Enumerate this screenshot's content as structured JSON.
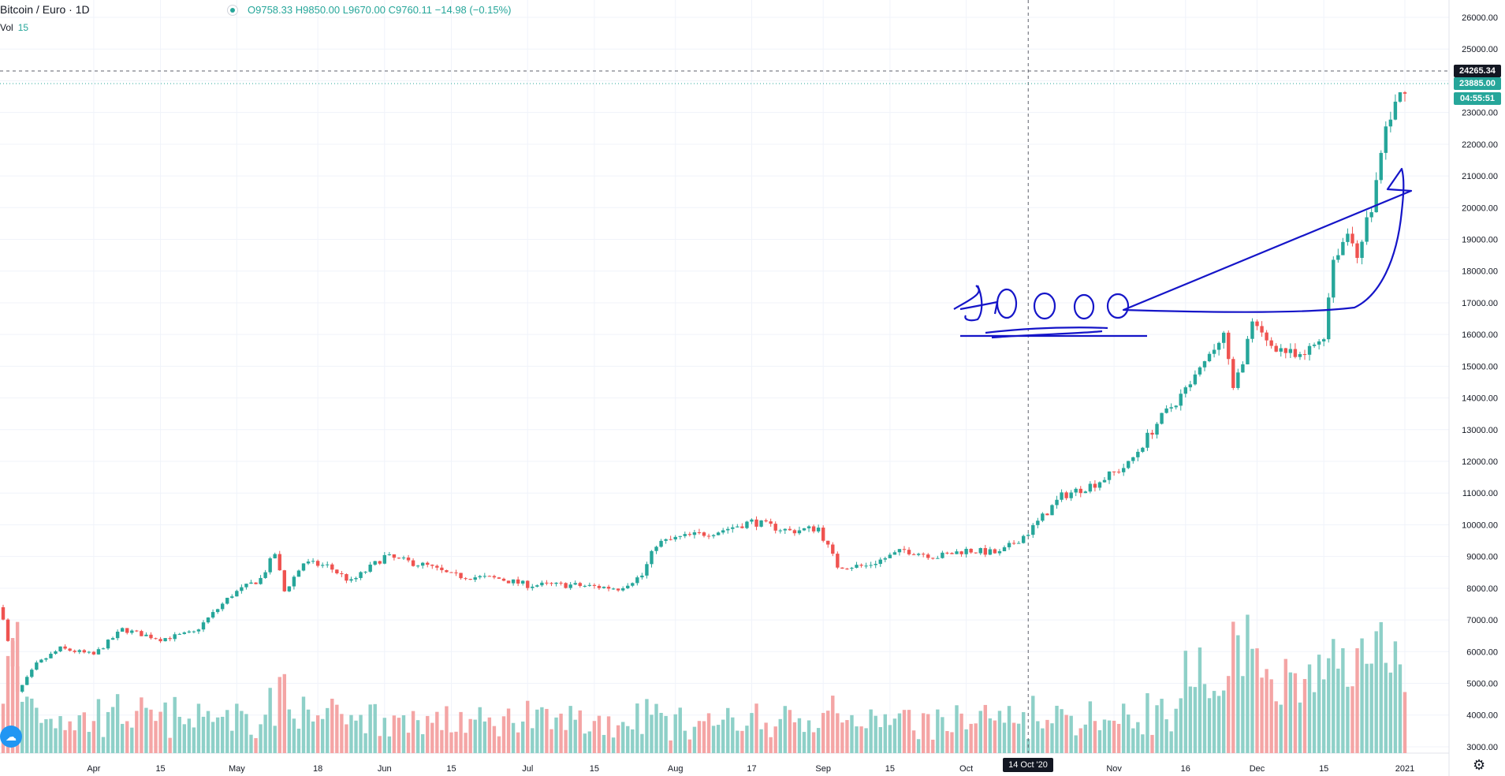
{
  "header": {
    "symbol": "Bitcoin / Euro · 1D",
    "open": "O9758.33",
    "high": "H9850.00",
    "low": "L9670.00",
    "close": "C9760.11",
    "change": "−14.98 (−0.15%)",
    "vol_label": "Vol",
    "vol_value": "15"
  },
  "crosshair": {
    "price_label": "24265.34",
    "date_label": "14 Oct '20"
  },
  "last_price": {
    "label": "23885.00",
    "countdown": "04:55:51"
  },
  "colors": {
    "up": "#26a69a",
    "down": "#ef5350",
    "vol_up": "#8ed0c8",
    "vol_down": "#f4a5a5",
    "annotation": "#1515c8"
  },
  "icons": {
    "logo": "tradingview-cloud-icon",
    "settings": "gear-icon"
  },
  "annotation_text": "16000",
  "chart_data": {
    "type": "candlestick",
    "title": "Bitcoin / Euro · 1D",
    "ylim": [
      2000,
      26500
    ],
    "grid": true,
    "y_ticks": [
      3000,
      4000,
      5000,
      6000,
      7000,
      8000,
      9000,
      10000,
      11000,
      12000,
      13000,
      14000,
      15000,
      16000,
      17000,
      18000,
      19000,
      20000,
      21000,
      22000,
      23000,
      24000,
      25000,
      26000
    ],
    "y_tick_labels": [
      "3000.00",
      "4000.00",
      "5000.00",
      "6000.00",
      "7000.00",
      "8000.00",
      "9000.00",
      "10000.00",
      "11000.00",
      "12000.00",
      "13000.00",
      "14000.00",
      "15000.00",
      "16000.00",
      "17000.00",
      "18000.00",
      "19000.00",
      "20000.00",
      "21000.00",
      "22000.00",
      "23000.00",
      "24000.00",
      "25000.00",
      "26000.00"
    ],
    "x_ticks": [
      {
        "label": "Apr",
        "date": "2020-04-01"
      },
      {
        "label": "15",
        "date": "2020-04-15"
      },
      {
        "label": "May",
        "date": "2020-05-01"
      },
      {
        "label": "18",
        "date": "2020-05-18"
      },
      {
        "label": "Jun",
        "date": "2020-06-01"
      },
      {
        "label": "15",
        "date": "2020-06-15"
      },
      {
        "label": "Jul",
        "date": "2020-07-01"
      },
      {
        "label": "15",
        "date": "2020-07-15"
      },
      {
        "label": "Aug",
        "date": "2020-08-01"
      },
      {
        "label": "17",
        "date": "2020-08-17"
      },
      {
        "label": "Sep",
        "date": "2020-09-01"
      },
      {
        "label": "15",
        "date": "2020-09-15"
      },
      {
        "label": "Oct",
        "date": "2020-10-01"
      },
      {
        "label": "Nov",
        "date": "2020-11-01"
      },
      {
        "label": "16",
        "date": "2020-11-16"
      },
      {
        "label": "Dec",
        "date": "2020-12-01"
      },
      {
        "label": "15",
        "date": "2020-12-15"
      },
      {
        "label": "2021",
        "date": "2021-01-01"
      }
    ],
    "x_range": [
      "2020-03-13",
      "2021-01-01"
    ],
    "close_anchors": [
      [
        "2020-03-13",
        7100
      ],
      [
        "2020-03-16",
        4700
      ],
      [
        "2020-03-20",
        5600
      ],
      [
        "2020-03-25",
        6100
      ],
      [
        "2020-04-01",
        5900
      ],
      [
        "2020-04-07",
        6700
      ],
      [
        "2020-04-15",
        6400
      ],
      [
        "2020-04-22",
        6600
      ],
      [
        "2020-04-30",
        7800
      ],
      [
        "2020-05-06",
        8300
      ],
      [
        "2020-05-09",
        9100
      ],
      [
        "2020-05-11",
        7900
      ],
      [
        "2020-05-15",
        8800
      ],
      [
        "2020-05-20",
        8700
      ],
      [
        "2020-05-25",
        8200
      ],
      [
        "2020-06-01",
        9000
      ],
      [
        "2020-06-10",
        8700
      ],
      [
        "2020-06-15",
        8400
      ],
      [
        "2020-06-25",
        8300
      ],
      [
        "2020-07-01",
        8100
      ],
      [
        "2020-07-10",
        8100
      ],
      [
        "2020-07-20",
        8000
      ],
      [
        "2020-07-25",
        8400
      ],
      [
        "2020-07-28",
        9400
      ],
      [
        "2020-08-02",
        9600
      ],
      [
        "2020-08-10",
        9800
      ],
      [
        "2020-08-17",
        10100
      ],
      [
        "2020-08-25",
        9800
      ],
      [
        "2020-08-31",
        9900
      ],
      [
        "2020-09-04",
        8700
      ],
      [
        "2020-09-10",
        8700
      ],
      [
        "2020-09-18",
        9200
      ],
      [
        "2020-09-25",
        9000
      ],
      [
        "2020-10-01",
        9200
      ],
      [
        "2020-10-08",
        9100
      ],
      [
        "2020-10-14",
        9760
      ],
      [
        "2020-10-21",
        10900
      ],
      [
        "2020-10-28",
        11300
      ],
      [
        "2020-11-04",
        11900
      ],
      [
        "2020-11-10",
        13200
      ],
      [
        "2020-11-18",
        14600
      ],
      [
        "2020-11-24",
        16000
      ],
      [
        "2020-11-26",
        14200
      ],
      [
        "2020-11-30",
        16300
      ],
      [
        "2020-12-03",
        15800
      ],
      [
        "2020-12-10",
        15200
      ],
      [
        "2020-12-15",
        16000
      ],
      [
        "2020-12-17",
        18400
      ],
      [
        "2020-12-20",
        19200
      ],
      [
        "2020-12-22",
        18600
      ],
      [
        "2020-12-25",
        20000
      ],
      [
        "2020-12-28",
        22500
      ],
      [
        "2021-01-01",
        23885
      ]
    ],
    "volume_axis_max_label": "3000.00"
  }
}
